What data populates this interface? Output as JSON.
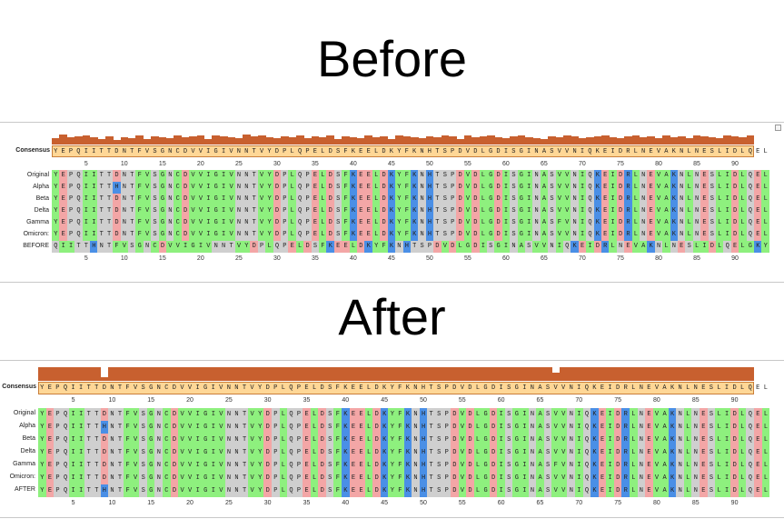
{
  "titles": {
    "before": "Before",
    "after": "After"
  },
  "sequence_length": 92,
  "colors": {
    "hydrophobic": "#8ef07e",
    "polar_neutral": "#cfcfcf",
    "acidic": "#f3a6a6",
    "basic": "#4a8fe6",
    "consensus_fill": "#ffd796",
    "consensus_border": "#c97e3a",
    "conservation_bar": "#c8602f"
  },
  "color_classes": {
    "hydrophobic": "AVILMFWCGY",
    "polar_neutral": "STNQP",
    "acidic": "DE",
    "basic": "KRH"
  },
  "consensus_label": "Consensus",
  "tick_labels": [
    "5",
    "10",
    "15",
    "20",
    "25",
    "30",
    "35",
    "40",
    "45",
    "50",
    "55",
    "60",
    "65",
    "70",
    "75",
    "80",
    "85",
    "90"
  ],
  "before": {
    "consensus": "YEPQIITTDNTFVSGNCDVVIGIVNNTVYDPLQPELDSFKEELDKYFKNHTSPDVDLGDISGINASVVNIQKEIDRLNEVAKNLNESLIDLQEL",
    "rows": [
      {
        "name": "Original",
        "seq": "YEPQIITTDNTFVSGNCDVVIGIVNNTVYDPLQPELDSFKEELDKYFKNHTSPDVDLGDISGINASVVNIQKEIDRLNEVAKNLNESLIDLQEL"
      },
      {
        "name": "Alpha",
        "seq": "YEPQIITTHNTFVSGNCDVVIGIVNNTVYDPLQPELDSFKEELDKYFKNHTSPDVDLGDISGINASVVNIQKEIDRLNEVAKNLNESLIDLQEL"
      },
      {
        "name": "Beta",
        "seq": "YEPQIITTDNTFVSGNCDVVIGIVNNTVYDPLQPELDSFKEELDKYFKNHTSPDVDLGDISGINASVVNIQKEIDRLNEVAKNLNESLIDLQEL"
      },
      {
        "name": "Delta",
        "seq": "YEPQIITTDNTFVSGNCDVVIGIVNNTVYDPLQPELDSFKEELDKYFKNHTSPDVDLGDISGINASVVNIQKEIDRLNEVAKNLNESLIDLQEL"
      },
      {
        "name": "Gamma",
        "seq": "YEPQIITTDNTFVSGNCDVVIGIVNNTVYDPLQPELDSFKEELDKYFKNHTSPDVDLGDISGINASFVNIQKEIDRLNEVAKNLNESLIDLQEL"
      },
      {
        "name": "Omicron:",
        "seq": "YEPQIITTDNTFVSGNCDVVIGIVNNTVYDPLQPELDSFKEELDKYFKNHTSPDVDLGDISGINASVVNIQKEIDRLNEVAKNLNESLIDLQEL"
      },
      {
        "name": "BEFORE",
        "seq": "QIITTHNTFVSGNCDVVIGIVNNTVYDPLQPELDSFKEELDKYFKNHTSPDVDLGDISGINASVVNIQKEIDRLNEVAKNLNESLIDLQELGKY"
      }
    ],
    "conservation": [
      0.45,
      0.7,
      0.5,
      0.55,
      0.6,
      0.5,
      0.4,
      0.55,
      0.3,
      0.5,
      0.45,
      0.6,
      0.4,
      0.55,
      0.5,
      0.45,
      0.6,
      0.5,
      0.55,
      0.6,
      0.4,
      0.65,
      0.55,
      0.5,
      0.45,
      0.7,
      0.55,
      0.6,
      0.5,
      0.45,
      0.55,
      0.5,
      0.6,
      0.45,
      0.55,
      0.5,
      0.6,
      0.4,
      0.55,
      0.5,
      0.45,
      0.6,
      0.5,
      0.55,
      0.4,
      0.6,
      0.55,
      0.5,
      0.45,
      0.55,
      0.5,
      0.6,
      0.55,
      0.4,
      0.6,
      0.5,
      0.55,
      0.65,
      0.5,
      0.45,
      0.55,
      0.6,
      0.5,
      0.45,
      0.35,
      0.55,
      0.5,
      0.6,
      0.55,
      0.45,
      0.5,
      0.55,
      0.6,
      0.5,
      0.45,
      0.55,
      0.6,
      0.5,
      0.55,
      0.45,
      0.6,
      0.5,
      0.55,
      0.45,
      0.6,
      0.55,
      0.5,
      0.45,
      0.6,
      0.55,
      0.5,
      0.6
    ]
  },
  "after": {
    "consensus": "YEPQIITTDNTFVSGNCDVVIGIVNNTVYDPLQPELDSFKEELDKYFKNHTSPDVDLGDISGINASVVNIQKEIDRLNEVAKNLNESLIDLQEL",
    "rows": [
      {
        "name": "Original",
        "seq": "YEPQIITTDNTFVSGNCDVVIGIVNNTVYDPLQPELDSFKEELDKYFKNHTSPDVDLGDISGINASVVNIQKEIDRLNEVAKNLNESLIDLQEL"
      },
      {
        "name": "Alpha",
        "seq": "YEPQIITTHNTFVSGNCDVVIGIVNNTVYDPLQPELDSFKEELDKYFKNHTSPDVDLGDISGINASVVNIQKEIDRLNEVAKNLNESLIDLQEL"
      },
      {
        "name": "Beta",
        "seq": "YEPQIITTDNTFVSGNCDVVIGIVNNTVYDPLQPELDSFKEELDKYFKNHTSPDVDLGDISGINASVVNIQKEIDRLNEVAKNLNESLIDLQEL"
      },
      {
        "name": "Delta",
        "seq": "YEPQIITTDNTFVSGNCDVVIGIVNNTVYDPLQPELDSFKEELDKYFKNHTSPDVDLGDISGINASVVNIQKEIDRLNEVAKNLNESLIDLQEL"
      },
      {
        "name": "Gamma",
        "seq": "YEPQIITTDNTFVSGNCDVVIGIVNNTVYDPLQPELDSFKEELDKYFKNHTSPDVDLGDISGINASFVNIQKEIDRLNEVAKNLNESLIDLQEL"
      },
      {
        "name": "Omicron:",
        "seq": "YEPQIITTDNTFVSGNCDVVIGIVNNTVYDPLQPELDSFKEELDKYFKNHTSPDVDLGDISGINASVVNIQKEIDRLNEVAKNLNESLIDLQEL"
      },
      {
        "name": "AFTER",
        "seq": "YEPQIITTHNTFVSGNCDVVIGIVNNTVYDPLQPELDSFKEELDKYFKNHTSPDVDLGDISGINASVVNIQKEIDRLNEVAKNLNESLIDLQEL"
      }
    ],
    "conservation": [
      1,
      1,
      1,
      1,
      1,
      1,
      1,
      1,
      0.3,
      1,
      1,
      1,
      1,
      1,
      1,
      1,
      1,
      1,
      1,
      1,
      1,
      1,
      1,
      1,
      1,
      1,
      1,
      1,
      1,
      1,
      1,
      1,
      1,
      1,
      1,
      1,
      1,
      1,
      1,
      1,
      1,
      1,
      1,
      1,
      1,
      1,
      1,
      1,
      1,
      1,
      1,
      1,
      1,
      1,
      1,
      1,
      1,
      1,
      1,
      1,
      1,
      1,
      1,
      1,
      1,
      1,
      0.6,
      1,
      1,
      1,
      1,
      1,
      1,
      1,
      1,
      1,
      1,
      1,
      1,
      1,
      1,
      1,
      1,
      1,
      1,
      1,
      1,
      1,
      1,
      1,
      1,
      1
    ]
  }
}
